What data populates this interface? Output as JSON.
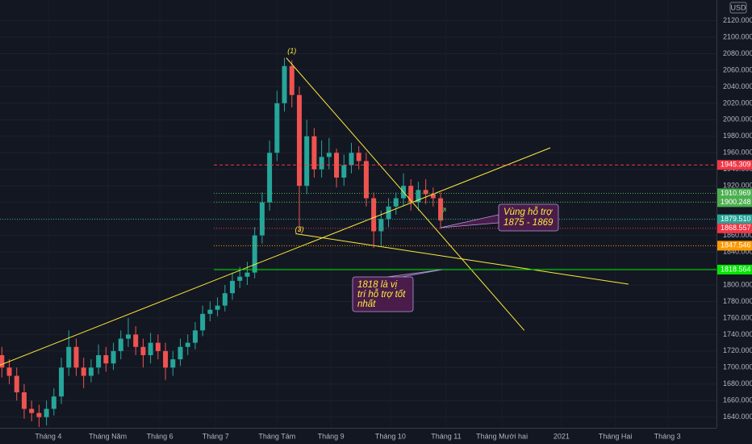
{
  "chart_data": {
    "type": "candlestick",
    "currency": "USD",
    "x": [
      1,
      5,
      9,
      13,
      17,
      21,
      25,
      29,
      33,
      37,
      41,
      45,
      49,
      53,
      57,
      61,
      65,
      69,
      73,
      77,
      81,
      85,
      89,
      93,
      97,
      101,
      105,
      109,
      113,
      117,
      121,
      125,
      129,
      133,
      137,
      141,
      145,
      149,
      153,
      157,
      161,
      165,
      169,
      173,
      177,
      181,
      185,
      189,
      193,
      197,
      201,
      205,
      209,
      213,
      217,
      221,
      225,
      229,
      233,
      237
    ],
    "open": [
      1715,
      1700,
      1690,
      1670,
      1650,
      1645,
      1640,
      1650,
      1665,
      1700,
      1725,
      1700,
      1690,
      1700,
      1715,
      1705,
      1720,
      1735,
      1740,
      1725,
      1715,
      1730,
      1720,
      1700,
      1710,
      1725,
      1730,
      1745,
      1765,
      1770,
      1775,
      1790,
      1805,
      1810,
      1815,
      1860,
      1900,
      1960,
      2020,
      2065,
      2030,
      1920,
      1980,
      1940,
      1955,
      1960,
      1930,
      1945,
      1960,
      1950,
      1905,
      1865,
      1880,
      1895,
      1905,
      1920,
      1900,
      1915,
      1910,
      1905
    ],
    "high": [
      1725,
      1710,
      1700,
      1680,
      1660,
      1655,
      1660,
      1675,
      1712,
      1745,
      1735,
      1712,
      1710,
      1728,
      1725,
      1730,
      1745,
      1760,
      1750,
      1735,
      1742,
      1740,
      1730,
      1720,
      1735,
      1740,
      1755,
      1775,
      1780,
      1785,
      1800,
      1815,
      1822,
      1828,
      1870,
      1912,
      1975,
      2035,
      2075,
      2072,
      2040,
      2000,
      1990,
      1975,
      1978,
      1965,
      1958,
      1972,
      1968,
      1960,
      1912,
      1890,
      1905,
      1912,
      1935,
      1928,
      1925,
      1928,
      1918,
      1912
    ],
    "low": [
      1688,
      1680,
      1660,
      1638,
      1635,
      1628,
      1630,
      1642,
      1656,
      1690,
      1690,
      1675,
      1682,
      1692,
      1695,
      1697,
      1710,
      1725,
      1715,
      1700,
      1705,
      1710,
      1685,
      1690,
      1702,
      1715,
      1722,
      1738,
      1756,
      1762,
      1768,
      1782,
      1796,
      1800,
      1808,
      1850,
      1890,
      1950,
      2010,
      2015,
      1865,
      1910,
      1930,
      1930,
      1940,
      1918,
      1920,
      1935,
      1940,
      1895,
      1845,
      1848,
      1870,
      1885,
      1895,
      1890,
      1890,
      1898,
      1895,
      1868
    ],
    "close": [
      1700,
      1690,
      1670,
      1650,
      1645,
      1640,
      1650,
      1665,
      1700,
      1725,
      1700,
      1690,
      1700,
      1715,
      1705,
      1720,
      1735,
      1740,
      1725,
      1715,
      1730,
      1720,
      1700,
      1710,
      1725,
      1730,
      1745,
      1765,
      1770,
      1775,
      1790,
      1805,
      1810,
      1815,
      1860,
      1900,
      1960,
      2020,
      2065,
      2030,
      1920,
      1980,
      1940,
      1955,
      1960,
      1930,
      1945,
      1960,
      1950,
      1905,
      1865,
      1880,
      1895,
      1905,
      1920,
      1900,
      1915,
      1910,
      1905,
      1878
    ],
    "up_color": "#26a69a",
    "down_color": "#ef5350",
    "xlim": [
      0,
      385.4
    ],
    "ylim": [
      1627,
      2145
    ],
    "xticks": [
      {
        "value": 26,
        "label": "Tháng 4"
      },
      {
        "value": 58,
        "label": "Tháng Năm"
      },
      {
        "value": 86,
        "label": "Tháng 6"
      },
      {
        "value": 116,
        "label": "Tháng 7"
      },
      {
        "value": 149,
        "label": "Tháng Tám"
      },
      {
        "value": 178,
        "label": "Tháng 9"
      },
      {
        "value": 210,
        "label": "Tháng 10"
      },
      {
        "value": 240,
        "label": "Tháng 11"
      },
      {
        "value": 270,
        "label": "Tháng Mười hai"
      },
      {
        "value": 302,
        "label": "2021"
      },
      {
        "value": 331,
        "label": "Tháng Hai"
      },
      {
        "value": 359,
        "label": "Tháng 3"
      }
    ],
    "yticks": [
      {
        "value": 1640,
        "label": "1640.000"
      },
      {
        "value": 1660,
        "label": "1660.000"
      },
      {
        "value": 1680,
        "label": "1680.000"
      },
      {
        "value": 1700,
        "label": "1700.000"
      },
      {
        "value": 1720,
        "label": "1720.000"
      },
      {
        "value": 1740,
        "label": "1740.000"
      },
      {
        "value": 1760,
        "label": "1760.000"
      },
      {
        "value": 1780,
        "label": "1780.000"
      },
      {
        "value": 1800,
        "label": "1800.000"
      },
      {
        "value": 1820,
        "label": "1820.000"
      },
      {
        "value": 1840,
        "label": "1840.000"
      },
      {
        "value": 1860,
        "label": "1860.000"
      },
      {
        "value": 1880,
        "label": "1880.000"
      },
      {
        "value": 1900,
        "label": "1900.000"
      },
      {
        "value": 1920,
        "label": "1920.000"
      },
      {
        "value": 1940,
        "label": "1940.000"
      },
      {
        "value": 1960,
        "label": "1960.000"
      },
      {
        "value": 1980,
        "label": "1980.000"
      },
      {
        "value": 2000,
        "label": "2000.000"
      },
      {
        "value": 2020,
        "label": "2020.000"
      },
      {
        "value": 2040,
        "label": "2040.000"
      },
      {
        "value": 2060,
        "label": "2060.000"
      },
      {
        "value": 2080,
        "label": "2080.000"
      },
      {
        "value": 2100,
        "label": "2100.000"
      },
      {
        "value": 2120,
        "label": "2120.000"
      }
    ],
    "levels": [
      {
        "value": 1945.309,
        "color": "#f23645",
        "style": "dashed"
      },
      {
        "value": 1910.969,
        "color": "#4caf50",
        "style": "dotted"
      },
      {
        "value": 1900.248,
        "color": "#4caf50",
        "style": "dotted"
      },
      {
        "value": 1879.51,
        "label": "1879.510",
        "color": "#26a69a",
        "style": "dotted"
      },
      {
        "value": 1868.557,
        "color": "#f23645",
        "style": "dotted"
      },
      {
        "value": 1847.546,
        "color": "#ff9800",
        "style": "dotted"
      },
      {
        "value": 1818.564,
        "color": "#00e600",
        "style": "solid"
      }
    ],
    "trend_lines": [
      {
        "points": [
          [
            0,
            1703
          ],
          [
            296,
            1966
          ]
        ],
        "color": "#ffeb3b"
      },
      {
        "points": [
          [
            154,
            2075
          ],
          [
            282,
            1745
          ]
        ],
        "color": "#ffeb3b"
      },
      {
        "points": [
          [
            159,
            1862
          ],
          [
            338,
            1801
          ]
        ],
        "color": "#ffeb3b"
      }
    ],
    "annotations": [
      {
        "text": "(1)",
        "day": 157,
        "price": 2083
      },
      {
        "text": "(3)",
        "day": 161,
        "price": 1867
      }
    ],
    "callouts": [
      {
        "lines": [
          "Vùng hỗ trợ",
          "1875 - 1869"
        ]
      },
      {
        "lines": [
          "1818 là vị",
          "trí hỗ trợ tốt",
          "nhất"
        ]
      }
    ]
  }
}
